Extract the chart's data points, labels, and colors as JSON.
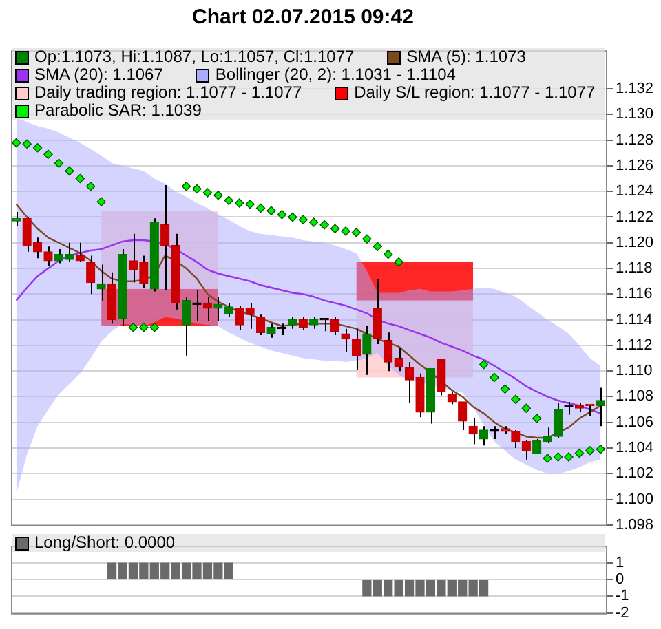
{
  "chart_data": [
    {
      "type": "candlestick",
      "title": "Chart 02.07.2015 09:42",
      "categories": [
        null,
        null,
        null,
        null,
        null,
        null,
        null,
        null,
        null,
        null,
        null,
        null,
        null,
        null,
        null,
        null,
        null,
        null,
        null,
        null,
        null,
        null,
        null,
        null,
        null,
        null,
        null,
        null,
        null,
        null,
        null,
        null,
        null,
        null,
        null,
        null,
        null,
        null,
        null,
        null,
        null,
        null,
        null,
        null,
        null,
        null,
        null,
        null,
        null,
        null,
        null,
        null,
        null,
        null,
        null,
        null
      ],
      "ylim": [
        1.098,
        1.135
      ],
      "yticks": [
        1.098,
        {
          "value": 1.1,
          "label": "1.100"
        },
        1.102,
        1.104,
        1.106,
        1.108,
        {
          "value": 1.11,
          "label": "1.110"
        },
        1.112,
        1.114,
        1.116,
        1.118,
        {
          "value": 1.12,
          "label": "1.120"
        },
        1.122,
        1.124,
        1.126,
        1.128,
        {
          "value": 1.13,
          "label": "1.130"
        },
        1.132
      ],
      "grid": "y",
      "legend": "top",
      "series": [
        {
          "name": "Op:1.1073, Hi:1.1087, Lo:1.1057, Cl:1.1077",
          "color": "#008000",
          "ohlc": [
            [
              1.1217,
              1.1224,
              1.1213,
              1.1219
            ],
            [
              1.1219,
              1.122,
              1.1193,
              1.1198
            ],
            [
              1.12,
              1.1204,
              1.1188,
              1.1193
            ],
            [
              1.1193,
              1.1197,
              1.1182,
              1.1186
            ],
            [
              1.1186,
              1.1195,
              1.1184,
              1.1191
            ],
            [
              1.1187,
              1.12,
              1.1185,
              1.1191
            ],
            [
              1.119,
              1.12,
              1.1185,
              1.1186
            ],
            [
              1.1185,
              1.119,
              1.116,
              1.1169
            ],
            [
              1.1164,
              1.1183,
              1.1155,
              1.1168
            ],
            [
              1.1168,
              1.1177,
              1.1137,
              1.114
            ],
            [
              1.1141,
              1.1195,
              1.1135,
              1.1191
            ],
            [
              1.1186,
              1.1207,
              1.1169,
              1.1179
            ],
            [
              1.1185,
              1.119,
              1.1165,
              1.1168
            ],
            [
              1.1164,
              1.1219,
              1.1162,
              1.1216
            ],
            [
              1.1214,
              1.1245,
              1.1163,
              1.1198
            ],
            [
              1.1198,
              1.1207,
              1.1148,
              1.1153
            ],
            [
              1.1136,
              1.1158,
              1.1112,
              1.1155
            ],
            [
              1.1152,
              1.1163,
              1.1139,
              1.1152
            ],
            [
              1.1153,
              1.1158,
              1.1139,
              1.1149
            ],
            [
              1.1149,
              1.1158,
              1.1139,
              1.1152
            ],
            [
              1.1145,
              1.1153,
              1.1142,
              1.115
            ],
            [
              1.1149,
              1.1151,
              1.1132,
              1.1136
            ],
            [
              1.1149,
              1.1153,
              1.1133,
              1.1144
            ],
            [
              1.1142,
              1.1144,
              1.1128,
              1.113
            ],
            [
              1.1129,
              1.1137,
              1.1126,
              1.1134
            ],
            [
              1.1133,
              1.1137,
              1.1128,
              1.1133
            ],
            [
              1.1136,
              1.1142,
              1.1133,
              1.114
            ],
            [
              1.114,
              1.1142,
              1.1132,
              1.1134
            ],
            [
              1.1136,
              1.1142,
              1.1133,
              1.114
            ],
            [
              1.114,
              1.114,
              1.1131,
              1.114
            ],
            [
              1.114,
              1.1142,
              1.1128,
              1.1131
            ],
            [
              1.1129,
              1.1133,
              1.1115,
              1.1125
            ],
            [
              1.1125,
              1.1133,
              1.1101,
              1.1112
            ],
            [
              1.1113,
              1.1135,
              1.1097,
              1.1129
            ],
            [
              1.1149,
              1.1172,
              1.1121,
              1.1125
            ],
            [
              1.1124,
              1.113,
              1.11,
              1.1107
            ],
            [
              1.111,
              1.1118,
              1.11,
              1.1103
            ],
            [
              1.1103,
              1.1107,
              1.1075,
              1.1093
            ],
            [
              1.1095,
              1.1098,
              1.1064,
              1.1068
            ],
            [
              1.1068,
              1.1102,
              1.1059,
              1.1102
            ],
            [
              1.1109,
              1.1109,
              1.1081,
              1.1084
            ],
            [
              1.1082,
              1.1084,
              1.1074,
              1.1076
            ],
            [
              1.1076,
              1.1076,
              1.1054,
              1.1061
            ],
            [
              1.1057,
              1.1063,
              1.1043,
              1.1051
            ],
            [
              1.1047,
              1.1057,
              1.1042,
              1.1054
            ],
            [
              1.1053,
              1.1057,
              1.1047,
              1.1053
            ],
            [
              1.1055,
              1.1057,
              1.1051,
              1.1053
            ],
            [
              1.1053,
              1.1054,
              1.104,
              1.1045
            ],
            [
              1.1045,
              1.1046,
              1.1031,
              1.1038
            ],
            [
              1.1036,
              1.1047,
              1.1036,
              1.1046
            ],
            [
              1.1045,
              1.1056,
              1.1044,
              1.1049
            ],
            [
              1.1049,
              1.1075,
              1.1048,
              1.107
            ],
            [
              1.1072,
              1.1076,
              1.1066,
              1.1072
            ],
            [
              1.1073,
              1.1075,
              1.1068,
              1.1071
            ],
            [
              1.1074,
              1.1074,
              1.1065,
              1.1073
            ],
            [
              1.1073,
              1.1087,
              1.1057,
              1.1077
            ]
          ],
          "colors": [
            "#008000",
            "#cc0000",
            "#cc0000",
            "#cc0000",
            "#008000",
            "#008000",
            "#cc0000",
            "#cc0000",
            "#008000",
            "#cc0000",
            "#008000",
            "#cc0000",
            "#cc0000",
            "#008000",
            "#cc0000",
            "#cc0000",
            "#008000",
            "#000000",
            "#cc0000",
            "#008000",
            "#008000",
            "#cc0000",
            "#cc0000",
            "#cc0000",
            "#008000",
            "#000000",
            "#008000",
            "#cc0000",
            "#008000",
            "#000000",
            "#cc0000",
            "#cc0000",
            "#cc0000",
            "#008000",
            "#cc0000",
            "#cc0000",
            "#cc0000",
            "#cc0000",
            "#cc0000",
            "#008000",
            "#cc0000",
            "#cc0000",
            "#cc0000",
            "#cc0000",
            "#008000",
            "#000000",
            "#cc0000",
            "#cc0000",
            "#cc0000",
            "#008000",
            "#008000",
            "#008000",
            "#000000",
            "#cc0000",
            "#cc0000",
            "#008000"
          ]
        },
        {
          "type": "line",
          "name": "SMA (5): 1.1073",
          "color": "#7a4a1e",
          "values": [
            1.123,
            1.122,
            1.1211,
            1.1204,
            1.12,
            1.1196,
            1.1192,
            1.1186,
            1.1178,
            1.1172,
            1.117,
            1.117,
            1.1171,
            1.1175,
            1.119,
            1.1186,
            1.118,
            1.1172,
            1.116,
            1.1154,
            1.115,
            1.1146,
            1.1144,
            1.1141,
            1.1138,
            1.1135,
            1.1136,
            1.1137,
            1.1137,
            1.1137,
            1.1137,
            1.1135,
            1.1133,
            1.1129,
            1.1125,
            1.1122,
            1.1119,
            1.1112,
            1.1105,
            1.1099,
            1.1092,
            1.1085,
            1.108,
            1.1072,
            1.1067,
            1.106,
            1.1055,
            1.1052,
            1.1049,
            1.1048,
            1.1048,
            1.1052,
            1.1056,
            1.1063,
            1.1068,
            1.1073
          ]
        },
        {
          "type": "line",
          "name": "SMA (20): 1.1067",
          "color": "#9933ee",
          "values": [
            1.1155,
            1.1165,
            1.1174,
            1.118,
            1.1186,
            1.119,
            1.1192,
            1.1194,
            1.1195,
            1.1198,
            1.1201,
            1.1202,
            1.1202,
            1.1201,
            1.1199,
            1.1195,
            1.119,
            1.1185,
            1.1179,
            1.1176,
            1.1174,
            1.1172,
            1.117,
            1.1167,
            1.1165,
            1.1163,
            1.1161,
            1.116,
            1.1158,
            1.1155,
            1.1153,
            1.1151,
            1.1148,
            1.1145,
            1.114,
            1.1137,
            1.1135,
            1.1132,
            1.1129,
            1.1126,
            1.1122,
            1.1119,
            1.1116,
            1.1112,
            1.1109,
            1.1104,
            1.1099,
            1.1094,
            1.1088,
            1.1084,
            1.108,
            1.1077,
            1.1075,
            1.1073,
            1.107,
            1.1067
          ]
        },
        {
          "type": "line",
          "name": "Bollinger (20, 2): 1.1031 - 1.1104",
          "color": "#aaaaff",
          "values": [
            1.1155,
            1.1165,
            1.1174,
            1.118,
            1.1186,
            1.119,
            1.1192,
            1.1194,
            1.1195,
            1.1198,
            1.1201,
            1.1202,
            1.1202,
            1.1201,
            1.1199,
            1.1195,
            1.119,
            1.1185,
            1.1179,
            1.1176,
            1.1174,
            1.1172,
            1.117,
            1.1167,
            1.1165,
            1.1163,
            1.1161,
            1.116,
            1.1158,
            1.1155,
            1.1153,
            1.1151,
            1.1148,
            1.1145,
            1.114,
            1.1137,
            1.1135,
            1.1132,
            1.1129,
            1.1126,
            1.1122,
            1.1119,
            1.1116,
            1.1112,
            1.1109,
            1.1104,
            1.1099,
            1.1094,
            1.1088,
            1.1084,
            1.108,
            1.1077,
            1.1075,
            1.1073,
            1.107,
            1.1067
          ],
          "upper": [
            1.1298,
            1.1294,
            1.1291,
            1.1289,
            1.1286,
            1.1282,
            1.1278,
            1.1273,
            1.1268,
            1.1262,
            1.126,
            1.1258,
            1.1256,
            1.125,
            1.1246,
            1.124,
            1.1236,
            1.1231,
            1.1227,
            1.1222,
            1.1218,
            1.1213,
            1.1209,
            1.1207,
            1.1206,
            1.1205,
            1.1204,
            1.1202,
            1.1201,
            1.12,
            1.1198,
            1.1195,
            1.1192,
            1.1178,
            1.1161,
            1.1161,
            1.1161,
            1.1163,
            1.1164,
            1.1162,
            1.1162,
            1.1162,
            1.1163,
            1.1164,
            1.1165,
            1.1164,
            1.1161,
            1.1158,
            1.1152,
            1.1146,
            1.114,
            1.1135,
            1.1129,
            1.112,
            1.111,
            1.1104
          ],
          "lower": [
            1.1004,
            1.1035,
            1.1057,
            1.107,
            1.1082,
            1.109,
            1.1098,
            1.111,
            1.1123,
            1.1131,
            1.1137,
            1.1136,
            1.1135,
            1.1138,
            1.1142,
            1.1141,
            1.1139,
            1.1137,
            1.1136,
            1.1135,
            1.113,
            1.1126,
            1.1122,
            1.1119,
            1.1116,
            1.1114,
            1.1112,
            1.111,
            1.1109,
            1.1108,
            1.1108,
            1.1107,
            1.1108,
            1.111,
            1.1114,
            1.1104,
            1.1097,
            1.1093,
            1.1091,
            1.1089,
            1.1087,
            1.1085,
            1.1083,
            1.1072,
            1.1058,
            1.1045,
            1.1038,
            1.1031,
            1.1027,
            1.1023,
            1.102,
            1.102,
            1.1022,
            1.1025,
            1.1029,
            1.1031
          ]
        },
        {
          "type": "line",
          "name": "Daily trading region: 1.1077 - 1.1077",
          "color": "#ffcccc",
          "values": [
            null,
            null,
            null,
            null,
            null,
            null,
            null,
            null,
            null,
            null,
            null,
            null,
            null,
            null,
            null,
            null,
            null,
            null,
            null,
            null,
            null,
            null,
            null,
            null,
            null,
            null,
            null,
            null,
            null,
            null,
            null,
            null,
            null,
            null,
            null,
            null,
            null,
            null,
            null,
            null,
            null,
            null,
            null,
            null,
            null,
            null,
            null,
            null,
            null,
            null,
            null,
            null,
            null,
            null,
            null,
            null
          ],
          "upper": [
            null,
            null,
            null,
            null,
            null,
            null,
            null,
            null,
            1.1225,
            1.1225,
            1.1225,
            1.1225,
            1.1225,
            1.1225,
            1.1225,
            1.1225,
            1.1225,
            1.1225,
            1.1225,
            1.1225,
            null,
            null,
            null,
            null,
            null,
            null,
            null,
            null,
            null,
            null,
            null,
            null,
            1.1155,
            1.1155,
            1.1155,
            1.1155,
            1.1155,
            1.1155,
            1.1155,
            1.1155,
            1.1155,
            1.1155,
            1.1155,
            1.1155,
            null,
            null,
            null,
            null,
            null,
            null,
            null,
            null,
            null,
            null,
            null,
            null
          ],
          "lower": [
            null,
            null,
            null,
            null,
            null,
            null,
            null,
            null,
            1.1164,
            1.1164,
            1.1164,
            1.1164,
            1.1164,
            1.1164,
            1.1164,
            1.1164,
            1.1164,
            1.1164,
            1.1164,
            1.1164,
            null,
            null,
            null,
            null,
            null,
            null,
            null,
            null,
            null,
            null,
            null,
            null,
            1.1095,
            1.1095,
            1.1095,
            1.1095,
            1.1095,
            1.1095,
            1.1095,
            1.1095,
            1.1095,
            1.1095,
            1.1095,
            1.1095,
            null,
            null,
            null,
            null,
            null,
            null,
            null,
            null,
            null,
            null,
            null,
            null
          ]
        },
        {
          "type": "line",
          "name": "Daily S/L region: 1.1077 - 1.1077",
          "color": "#ff0000",
          "values": [
            null,
            null,
            null,
            null,
            null,
            null,
            null,
            null,
            null,
            null,
            null,
            null,
            null,
            null,
            null,
            null,
            null,
            null,
            null,
            null,
            null,
            null,
            null,
            null,
            null,
            null,
            null,
            null,
            null,
            null,
            null,
            null,
            null,
            null,
            null,
            null,
            null,
            null,
            null,
            null,
            null,
            null,
            null,
            null,
            null,
            null,
            null,
            null,
            null,
            null,
            null,
            null,
            null,
            null,
            null,
            null
          ],
          "upper": [
            null,
            null,
            null,
            null,
            null,
            null,
            null,
            null,
            1.1164,
            1.1164,
            1.1164,
            1.1164,
            1.1164,
            1.1164,
            1.1164,
            1.1164,
            1.1164,
            1.1164,
            1.1164,
            1.1164,
            null,
            null,
            null,
            null,
            null,
            null,
            null,
            null,
            null,
            null,
            null,
            null,
            1.1185,
            1.1185,
            1.1185,
            1.1185,
            1.1185,
            1.1185,
            1.1185,
            1.1185,
            1.1185,
            1.1185,
            1.1185,
            1.1185,
            null,
            null,
            null,
            null,
            null,
            null,
            null,
            null,
            null,
            null,
            null,
            null
          ],
          "lower": [
            null,
            null,
            null,
            null,
            null,
            null,
            null,
            null,
            1.1135,
            1.1135,
            1.1135,
            1.1135,
            1.1135,
            1.1135,
            1.1135,
            1.1135,
            1.1135,
            1.1135,
            1.1135,
            1.1135,
            null,
            null,
            null,
            null,
            null,
            null,
            null,
            null,
            null,
            null,
            null,
            null,
            1.1155,
            1.1155,
            1.1155,
            1.1155,
            1.1155,
            1.1155,
            1.1155,
            1.1155,
            1.1155,
            1.1155,
            1.1155,
            1.1155,
            null,
            null,
            null,
            null,
            null,
            null,
            null,
            null,
            null,
            null,
            null,
            null
          ]
        },
        {
          "type": "scatter",
          "name": "Parabolic SAR: 1.1039",
          "color": "#00ee00",
          "marker": "diamond",
          "values": [
            1.1278,
            1.1277,
            1.1274,
            1.1269,
            1.1262,
            1.1256,
            1.125,
            1.1244,
            1.1232,
            null,
            null,
            1.1134,
            1.1134,
            1.1134,
            null,
            null,
            1.1244,
            1.1242,
            1.1239,
            1.1237,
            1.1233,
            1.1231,
            1.123,
            1.1227,
            1.1225,
            1.1222,
            1.122,
            1.1218,
            1.1216,
            1.1214,
            1.1211,
            1.1209,
            1.1208,
            1.1203,
            1.1197,
            1.1191,
            1.1185,
            null,
            null,
            null,
            null,
            null,
            null,
            null,
            1.1105,
            1.1095,
            1.1086,
            1.1078,
            1.1071,
            1.1063,
            1.1032,
            1.1033,
            1.1033,
            1.1036,
            1.1038,
            1.1039
          ]
        }
      ]
    },
    {
      "type": "bar",
      "categories": [
        null,
        null,
        null,
        null,
        null,
        null,
        null,
        null,
        null,
        null,
        null,
        null,
        null,
        null,
        null,
        null,
        null,
        null,
        null,
        null,
        null,
        null,
        null,
        null,
        null,
        null,
        null,
        null,
        null,
        null,
        null,
        null,
        null,
        null,
        null,
        null,
        null,
        null,
        null,
        null,
        null,
        null,
        null,
        null,
        null,
        null,
        null,
        null,
        null,
        null,
        null,
        null,
        null,
        null,
        null,
        null
      ],
      "ylim": [
        -2,
        2
      ],
      "yticks": [
        -2,
        -1,
        0,
        1
      ],
      "grid": "y",
      "legend": "top",
      "series": [
        {
          "name": "Long/Short: 0.0000",
          "color": "#6a6a6a",
          "values": [
            0,
            0,
            0,
            0,
            0,
            0,
            0,
            0,
            0,
            1,
            1,
            1,
            1,
            1,
            1,
            1,
            1,
            1,
            1,
            1,
            1,
            0,
            0,
            0,
            0,
            0,
            0,
            0,
            0,
            0,
            0,
            0,
            0,
            -1,
            -1,
            -1,
            -1,
            -1,
            -1,
            -1,
            -1,
            -1,
            -1,
            -1,
            -1,
            0,
            0,
            0,
            0,
            0,
            0,
            0,
            0,
            0,
            0,
            0
          ]
        }
      ]
    }
  ]
}
